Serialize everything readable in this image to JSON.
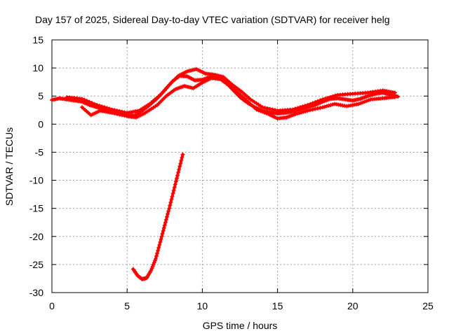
{
  "chart_data": {
    "type": "scatter",
    "title": "Day 157 of 2025, Sidereal Day-to-day VTEC variation (SDTVAR) for receiver helg",
    "xlabel": "GPS time / hours",
    "ylabel": "SDTVAR / TECUs",
    "xlim": [
      0,
      25
    ],
    "ylim": [
      -30,
      15
    ],
    "xticks": [
      0,
      5,
      10,
      15,
      20,
      25
    ],
    "yticks": [
      15,
      10,
      5,
      0,
      -5,
      -10,
      -15,
      -20,
      -25,
      -30
    ],
    "xtick_labels": [
      "0",
      "5",
      "10",
      "15",
      "20",
      "25"
    ],
    "ytick_labels": [
      "15",
      "10",
      "5",
      "0",
      "-5",
      "-10",
      "-15",
      "-20",
      "-25",
      "-30"
    ],
    "grid": true,
    "color": "#ff0000",
    "series": [
      {
        "name": "main",
        "x": [
          0.0,
          0.5,
          1.0,
          1.5,
          2.0,
          2.5,
          3.0,
          3.5,
          4.0,
          4.5,
          5.0,
          5.5,
          6.0,
          6.5,
          7.0,
          7.5,
          8.0,
          8.5,
          9.0,
          9.5,
          10.0,
          10.5,
          11.0,
          11.5,
          12.0,
          12.5,
          13.0,
          13.5,
          14.0,
          14.5,
          15.0,
          15.5,
          16.0,
          16.5,
          17.0,
          17.5,
          18.0,
          18.5,
          19.0,
          19.5,
          20.0,
          20.5,
          21.0,
          21.5,
          22.0,
          22.5,
          23.0
        ],
        "y": [
          4.3,
          4.6,
          4.4,
          4.2,
          4.0,
          3.4,
          3.0,
          2.6,
          2.2,
          2.0,
          1.6,
          1.5,
          2.4,
          3.4,
          4.6,
          6.0,
          7.6,
          8.6,
          8.5,
          7.8,
          7.9,
          8.4,
          8.5,
          7.6,
          6.2,
          4.8,
          3.8,
          3.0,
          2.4,
          2.1,
          1.9,
          2.0,
          2.2,
          2.6,
          3.0,
          3.4,
          4.0,
          4.5,
          4.6,
          4.4,
          4.2,
          4.5,
          5.0,
          5.4,
          5.6,
          5.2,
          4.9
        ]
      },
      {
        "name": "upper-branch",
        "x": [
          1.0,
          2.0,
          3.0,
          4.0,
          5.0,
          5.8,
          6.5,
          7.2,
          7.8,
          8.4,
          9.0,
          9.6,
          10.2,
          10.8,
          11.4,
          12.0,
          12.6,
          13.2,
          14.0,
          15.0,
          16.0,
          17.0,
          18.0,
          19.0,
          20.0,
          21.0,
          22.0,
          22.8
        ],
        "y": [
          4.8,
          4.5,
          3.4,
          2.6,
          2.0,
          2.4,
          3.6,
          5.2,
          7.0,
          8.6,
          9.4,
          9.8,
          9.0,
          8.8,
          8.4,
          7.0,
          5.8,
          4.4,
          3.0,
          2.4,
          2.6,
          3.4,
          4.4,
          5.2,
          5.4,
          5.6,
          6.0,
          5.6
        ]
      },
      {
        "name": "lower-branch",
        "x": [
          2.0,
          2.6,
          3.2,
          4.0,
          5.0,
          5.6,
          6.2,
          7.0,
          7.6,
          8.2,
          8.8,
          9.4,
          10.0,
          10.6,
          11.2,
          12.0,
          12.8,
          13.6,
          14.4,
          15.0,
          15.6,
          16.2,
          17.0,
          18.0,
          18.8,
          19.6,
          20.4,
          21.2,
          22.0,
          22.8
        ],
        "y": [
          3.0,
          1.6,
          2.4,
          2.0,
          1.4,
          1.2,
          2.0,
          3.4,
          5.0,
          6.2,
          6.8,
          6.4,
          7.4,
          8.2,
          8.0,
          6.4,
          4.6,
          2.6,
          1.8,
          1.0,
          1.2,
          1.8,
          2.4,
          3.0,
          3.6,
          3.2,
          3.6,
          4.4,
          4.6,
          4.8
        ]
      },
      {
        "name": "dip-branch",
        "x": [
          5.4,
          5.7,
          6.0,
          6.3,
          6.6,
          6.9,
          7.2,
          7.5,
          7.8,
          8.1,
          8.4,
          8.7
        ],
        "y": [
          -25.8,
          -27.0,
          -27.6,
          -27.4,
          -26.0,
          -24.0,
          -21.0,
          -18.0,
          -15.0,
          -11.8,
          -8.6,
          -5.4
        ]
      }
    ]
  }
}
